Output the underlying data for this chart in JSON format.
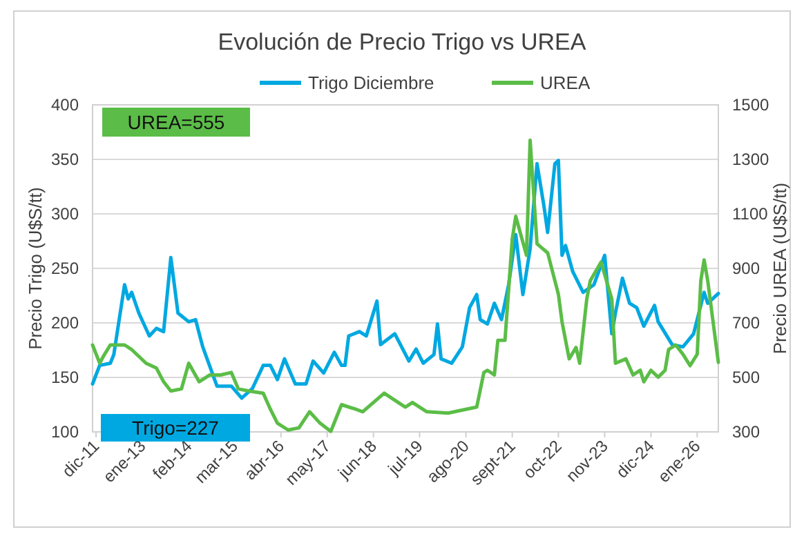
{
  "chart_data": {
    "type": "line",
    "title": "Evolución de Precio Trigo vs UREA",
    "ylabel": "Precio Trigo (U$S/tt)",
    "y2label": "Precio UREA (U$S/tt)",
    "xlim": [
      "2011-11",
      "2026-07"
    ],
    "xticks": [
      {
        "value": "2011-12",
        "label": "dic-11"
      },
      {
        "value": "2013-01",
        "label": "ene-13"
      },
      {
        "value": "2014-02",
        "label": "feb-14"
      },
      {
        "value": "2015-03",
        "label": "mar-15"
      },
      {
        "value": "2016-04",
        "label": "abr-16"
      },
      {
        "value": "2017-05",
        "label": "may-17"
      },
      {
        "value": "2018-06",
        "label": "jun-18"
      },
      {
        "value": "2019-07",
        "label": "jul-19"
      },
      {
        "value": "2020-08",
        "label": "ago-20"
      },
      {
        "value": "2021-09",
        "label": "sept-21"
      },
      {
        "value": "2022-10",
        "label": "oct-22"
      },
      {
        "value": "2023-11",
        "label": "nov-23"
      },
      {
        "value": "2024-12",
        "label": "dic-24"
      },
      {
        "value": "2026-01",
        "label": "ene-26"
      }
    ],
    "ylim": [
      100,
      400
    ],
    "yticks": [
      100,
      150,
      200,
      250,
      300,
      350,
      400
    ],
    "y2lim": [
      300,
      1500
    ],
    "y2ticks": [
      300,
      500,
      700,
      900,
      1100,
      1300,
      1500
    ],
    "grid": "y",
    "legend": "top",
    "annotations": [
      "Trigo=227",
      "UREA=555"
    ],
    "series": [
      {
        "name": "Trigo Diciembre",
        "color": "#00a8e1",
        "x": [
          "2011-11",
          "2012-01",
          "2012-04",
          "2012-05",
          "2012-08",
          "2012-09",
          "2012-10",
          "2012-12",
          "2013-03",
          "2013-05",
          "2013-07",
          "2013-09",
          "2013-11",
          "2014-02",
          "2014-04",
          "2014-06",
          "2014-10",
          "2015-02",
          "2015-05",
          "2015-08",
          "2015-11",
          "2016-01",
          "2016-03",
          "2016-05",
          "2016-08",
          "2016-11",
          "2017-01",
          "2017-04",
          "2017-07",
          "2017-09",
          "2017-10",
          "2017-11",
          "2018-02",
          "2018-04",
          "2018-07",
          "2018-08",
          "2018-12",
          "2019-04",
          "2019-06",
          "2019-08",
          "2019-11",
          "2019-12",
          "2020-01",
          "2020-04",
          "2020-07",
          "2020-09",
          "2020-11",
          "2020-12",
          "2021-02",
          "2021-04",
          "2021-06",
          "2021-08",
          "2021-10",
          "2021-12",
          "2022-02",
          "2022-04",
          "2022-06",
          "2022-07",
          "2022-09",
          "2022-10",
          "2022-11",
          "2022-12",
          "2023-02",
          "2023-05",
          "2023-08",
          "2023-11",
          "2024-01",
          "2024-02",
          "2024-04",
          "2024-06",
          "2024-08",
          "2024-10",
          "2025-01",
          "2025-02",
          "2025-06",
          "2025-09",
          "2025-12",
          "2026-03",
          "2026-04",
          "2026-07"
        ],
        "values": [
          144,
          161,
          163,
          171,
          235,
          222,
          228,
          209,
          188,
          195,
          192,
          260,
          209,
          201,
          203,
          178,
          142,
          142,
          131,
          140,
          161,
          161,
          148,
          167,
          144,
          144,
          165,
          154,
          173,
          161,
          161,
          188,
          192,
          188,
          220,
          180,
          190,
          165,
          176,
          163,
          171,
          199,
          167,
          163,
          178,
          214,
          226,
          203,
          199,
          218,
          203,
          235,
          281,
          226,
          268,
          346,
          306,
          283,
          346,
          349,
          262,
          271,
          247,
          228,
          235,
          262,
          190,
          209,
          241,
          218,
          214,
          197,
          216,
          201,
          180,
          178,
          190,
          228,
          218,
          227
        ]
      },
      {
        "name": "UREA",
        "color": "#5bbd47",
        "axis": "y2",
        "x": [
          "2011-11",
          "2012-01",
          "2012-02",
          "2012-04",
          "2012-08",
          "2012-10",
          "2013-02",
          "2013-05",
          "2013-07",
          "2013-09",
          "2013-12",
          "2014-02",
          "2014-05",
          "2014-08",
          "2014-11",
          "2015-02",
          "2015-04",
          "2015-07",
          "2015-11",
          "2016-01",
          "2016-03",
          "2016-06",
          "2016-09",
          "2016-12",
          "2017-03",
          "2017-06",
          "2017-09",
          "2018-01",
          "2018-03",
          "2018-06",
          "2018-09",
          "2018-12",
          "2019-03",
          "2019-05",
          "2019-07",
          "2019-09",
          "2020-03",
          "2020-08",
          "2020-11",
          "2021-01",
          "2021-02",
          "2021-04",
          "2021-05",
          "2021-07",
          "2021-09",
          "2021-10",
          "2022-01",
          "2022-02",
          "2022-04",
          "2022-07",
          "2022-08",
          "2022-10",
          "2022-11",
          "2023-01",
          "2023-03",
          "2023-04",
          "2023-06",
          "2023-07",
          "2023-10",
          "2024-01",
          "2024-02",
          "2024-05",
          "2024-07",
          "2024-09",
          "2024-10",
          "2024-12",
          "2025-02",
          "2025-04",
          "2025-05",
          "2025-07",
          "2025-09",
          "2025-11",
          "2026-01",
          "2026-02",
          "2026-03",
          "2026-04",
          "2026-07"
        ],
        "values": [
          619,
          552,
          577,
          619,
          619,
          602,
          552,
          534,
          484,
          450,
          458,
          552,
          484,
          509,
          509,
          518,
          458,
          450,
          442,
          383,
          332,
          307,
          315,
          374,
          332,
          302,
          400,
          383,
          374,
          408,
          442,
          416,
          391,
          408,
          391,
          374,
          369,
          383,
          391,
          518,
          526,
          509,
          636,
          636,
          1007,
          1091,
          948,
          1370,
          990,
          957,
          906,
          805,
          704,
          568,
          610,
          552,
          788,
          855,
          923,
          788,
          552,
          568,
          509,
          526,
          484,
          526,
          501,
          526,
          602,
          619,
          585,
          543,
          585,
          855,
          931,
          855,
          555
        ]
      }
    ]
  }
}
